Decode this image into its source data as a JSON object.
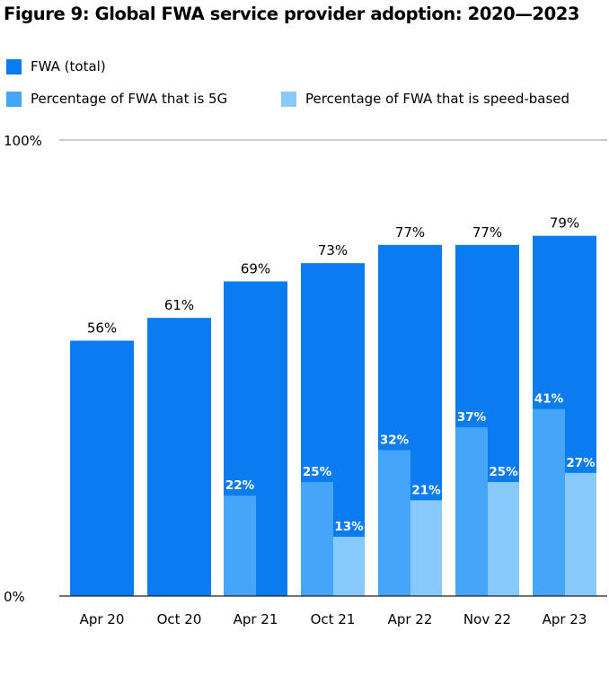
{
  "title": "Figure 9: Global FWA service provider adoption: 2020—2023",
  "colors": {
    "fwa_total": "#0a7cf0",
    "pct_5g": "#45a6f7",
    "pct_speed": "#88c9fb",
    "grid": "#999999"
  },
  "legend": [
    {
      "name": "FWA (total)",
      "color": "#0a7cf0"
    },
    {
      "name": "Percentage of FWA that is 5G",
      "color": "#45a6f7"
    },
    {
      "name": "Percentage of FWA that is speed-based",
      "color": "#88c9fb"
    }
  ],
  "chart_data": {
    "type": "bar",
    "title": "Figure 9: Global FWA service provider adoption: 2020—2023",
    "categories": [
      "Apr 20",
      "Oct 20",
      "Apr 21",
      "Oct 21",
      "Apr 22",
      "Nov 22",
      "Apr 23"
    ],
    "series": [
      {
        "name": "FWA (total)",
        "values": [
          56,
          61,
          69,
          73,
          77,
          77,
          79
        ]
      },
      {
        "name": "Percentage of FWA that is 5G",
        "values": [
          null,
          null,
          22,
          25,
          32,
          37,
          41
        ]
      },
      {
        "name": "Percentage of FWA that is speed-based",
        "values": [
          null,
          null,
          null,
          13,
          21,
          25,
          27
        ]
      }
    ],
    "ylim": [
      0,
      100
    ],
    "yticks": [
      "0%",
      "100%"
    ],
    "unit": "%",
    "legend_position": "top-left",
    "grid": "top line only"
  }
}
